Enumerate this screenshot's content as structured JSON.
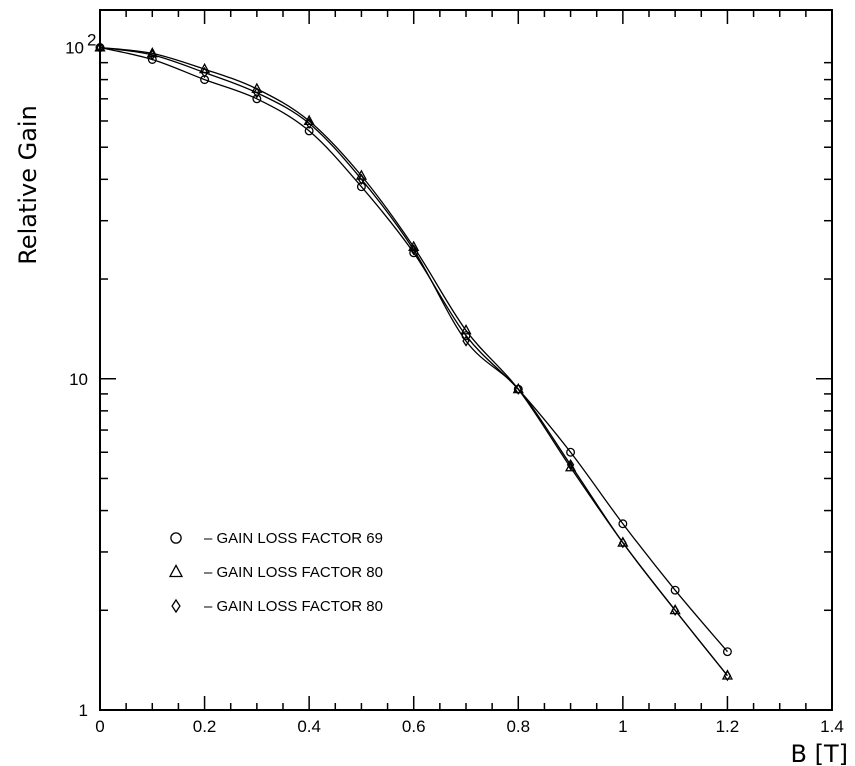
{
  "chart_data": {
    "type": "line",
    "title": "",
    "xlabel": "B [T]",
    "ylabel": "Relative Gain",
    "xlim": [
      0,
      1.4
    ],
    "ylim": [
      1,
      150
    ],
    "yscale": "log",
    "grid": false,
    "legend_position": "lower-left",
    "x_ticks": [
      0,
      0.2,
      0.4,
      0.6,
      0.8,
      1,
      1.2,
      1.4
    ],
    "x_tick_labels": [
      "0",
      "0.2",
      "0.4",
      "0.6",
      "0.8",
      "1",
      "1.2",
      "1.4"
    ],
    "y_tick_labels": [
      {
        "value": 1,
        "base": "1",
        "exp": ""
      },
      {
        "value": 10,
        "base": "10",
        "exp": ""
      },
      {
        "value": 100,
        "base": "10",
        "exp": "2"
      }
    ],
    "series": [
      {
        "name": "GAIN LOSS FACTOR 69",
        "marker": "circle",
        "x": [
          0,
          0.1,
          0.2,
          0.3,
          0.4,
          0.5,
          0.6,
          0.7,
          0.8,
          0.9,
          1.0,
          1.1,
          1.2
        ],
        "y": [
          100,
          92,
          80,
          70,
          56,
          38,
          24,
          13.5,
          9.3,
          6.0,
          3.65,
          2.3,
          1.5
        ]
      },
      {
        "name": "GAIN LOSS FACTOR 80",
        "marker": "triangle",
        "x": [
          0,
          0.1,
          0.2,
          0.3,
          0.4,
          0.5,
          0.6,
          0.7,
          0.8,
          0.9,
          1.0,
          1.1,
          1.2
        ],
        "y": [
          100,
          96,
          86,
          75,
          60,
          41,
          25,
          14,
          9.3,
          5.4,
          3.2,
          2.0,
          1.27
        ]
      },
      {
        "name": "GAIN LOSS FACTOR 80",
        "marker": "diamond",
        "x": [
          0,
          0.1,
          0.2,
          0.3,
          0.4,
          0.5,
          0.6,
          0.7,
          0.8,
          0.9,
          1.0,
          1.1,
          1.2
        ],
        "y": [
          100,
          95,
          84,
          73,
          59,
          40,
          24.5,
          13,
          9.3,
          5.5,
          3.2,
          2.0,
          1.27
        ]
      }
    ],
    "legend_dash": "–"
  }
}
